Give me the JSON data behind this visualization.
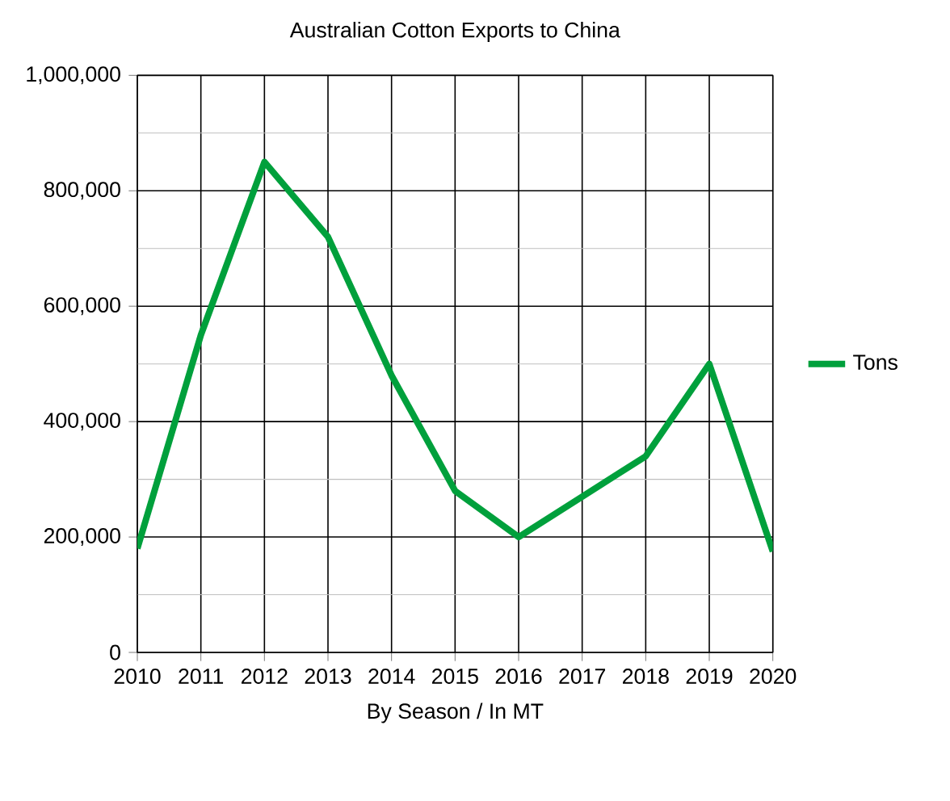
{
  "chart_data": {
    "type": "line",
    "title": "Australian Cotton Exports to China",
    "xlabel": "By Season /  In MT",
    "x": [
      2010,
      2011,
      2012,
      2013,
      2014,
      2015,
      2016,
      2017,
      2018,
      2019,
      2020
    ],
    "series": [
      {
        "name": "Tons",
        "color": "#00a03c",
        "values": [
          180000,
          550000,
          850000,
          720000,
          480000,
          280000,
          200000,
          270000,
          340000,
          500000,
          175000
        ]
      }
    ],
    "xlim": [
      2010,
      2020
    ],
    "xticks": [
      2010,
      2011,
      2012,
      2013,
      2014,
      2015,
      2016,
      2017,
      2018,
      2019,
      2020
    ],
    "ylim": [
      0,
      1000000
    ],
    "yticks": [
      0,
      {
        "value": 200000,
        "label": "200,000"
      },
      {
        "value": 400000,
        "label": "400,000"
      },
      {
        "value": 600000,
        "label": "600,000"
      },
      {
        "value": 800000,
        "label": "800,000"
      },
      {
        "value": 1000000,
        "label": "1,000,000"
      }
    ],
    "grid": true,
    "legend": "right",
    "marker": "none",
    "line_style": "solid"
  }
}
